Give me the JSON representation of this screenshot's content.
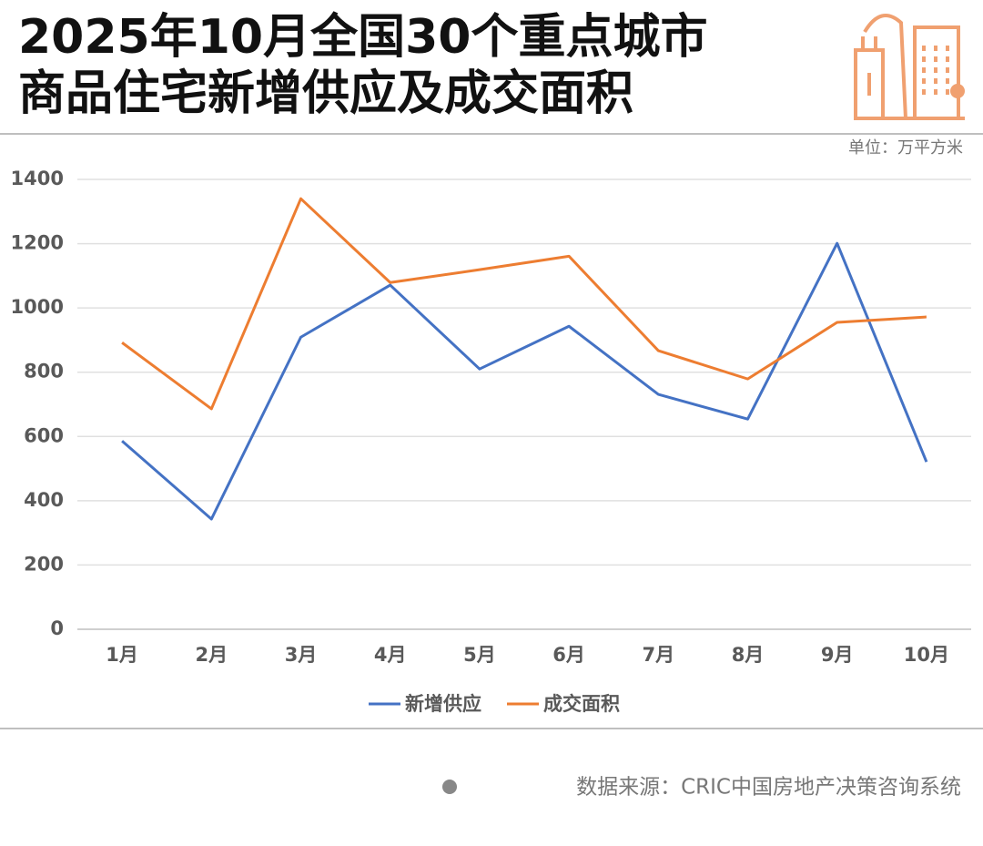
{
  "chart_data": {
    "type": "line",
    "title": [
      "2025年10月全国30个重点城市",
      "商品住宅新增供应及成交面积"
    ],
    "unit": "单位：万平方米",
    "source": "数据来源：CRIC中国房地产决策咨询系统",
    "categories": [
      "1月",
      "2月",
      "3月",
      "4月",
      "5月",
      "6月",
      "7月",
      "8月",
      "9月",
      "10月"
    ],
    "series": [
      {
        "name": "新增供应",
        "color": "#4472c4",
        "values": [
          586,
          343,
          909,
          1071,
          810,
          943,
          731,
          654,
          1201,
          521
        ]
      },
      {
        "name": "成交面积",
        "color": "#ed7d31",
        "values": [
          892,
          686,
          1340,
          1079,
          1119,
          1161,
          867,
          779,
          955,
          972
        ]
      }
    ],
    "ylim": [
      0,
      1400
    ],
    "yticks": [
      0,
      200,
      400,
      600,
      800,
      1000,
      1200,
      1400
    ],
    "grid": true
  }
}
